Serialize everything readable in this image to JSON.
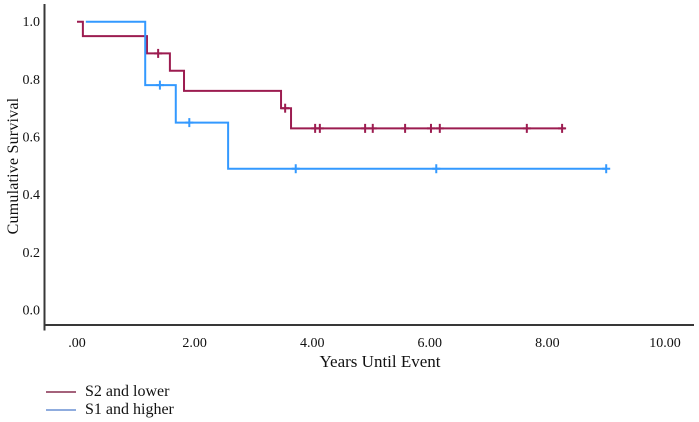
{
  "figure": {
    "background": "#ffffff",
    "axis_color": "#383838",
    "text_color": "#111111"
  },
  "chart_data": {
    "type": "line",
    "subtype": "kaplan-meier-step-plot",
    "title": "",
    "xlabel": "Years Until Event",
    "ylabel": "Cumulative Survival",
    "xlim": [
      -0.55,
      10.5
    ],
    "ylim": [
      0.0,
      1.05
    ],
    "grid": false,
    "legend_position": "bottom-left",
    "x_ticks": [
      {
        "label": ".00",
        "value": 0
      },
      {
        "label": "2.00",
        "value": 2
      },
      {
        "label": "4.00",
        "value": 4
      },
      {
        "label": "6.00",
        "value": 6
      },
      {
        "label": "8.00",
        "value": 8
      },
      {
        "label": "10.00",
        "value": 10
      }
    ],
    "y_ticks": [
      {
        "label": "0.0",
        "value": 0.0
      },
      {
        "label": "0.2",
        "value": 0.2
      },
      {
        "label": "0.4",
        "value": 0.4
      },
      {
        "label": "0.6",
        "value": 0.6
      },
      {
        "label": "0.8",
        "value": 0.8
      },
      {
        "label": "1.0",
        "value": 1.0
      }
    ],
    "series": [
      {
        "name": "S2 and lower",
        "color": "#9C1C50",
        "legend_color": "#A4627B",
        "steps": [
          [
            0.0,
            1.0
          ],
          [
            0.1,
            0.95
          ],
          [
            1.19,
            0.89
          ],
          [
            1.58,
            0.83
          ],
          [
            1.82,
            0.76
          ],
          [
            3.47,
            0.7
          ],
          [
            3.64,
            0.63
          ]
        ],
        "end_time": 8.3,
        "censor_marks": [
          [
            1.38,
            0.89
          ],
          [
            3.54,
            0.7
          ],
          [
            4.05,
            0.63
          ],
          [
            4.13,
            0.63
          ],
          [
            4.9,
            0.63
          ],
          [
            5.03,
            0.63
          ],
          [
            5.58,
            0.63
          ],
          [
            6.02,
            0.63
          ],
          [
            6.17,
            0.63
          ],
          [
            7.65,
            0.63
          ],
          [
            8.25,
            0.63
          ]
        ]
      },
      {
        "name": "S1 and higher",
        "color": "#3399FF",
        "legend_color": "#8FACDE",
        "steps": [
          [
            0.15,
            1.0
          ],
          [
            1.16,
            0.78
          ],
          [
            1.68,
            0.65
          ],
          [
            2.57,
            0.49
          ]
        ],
        "end_time": 9.0,
        "censor_marks": [
          [
            1.41,
            0.78
          ],
          [
            1.91,
            0.65
          ],
          [
            3.72,
            0.49
          ],
          [
            6.11,
            0.49
          ],
          [
            9.0,
            0.49
          ]
        ]
      }
    ]
  }
}
